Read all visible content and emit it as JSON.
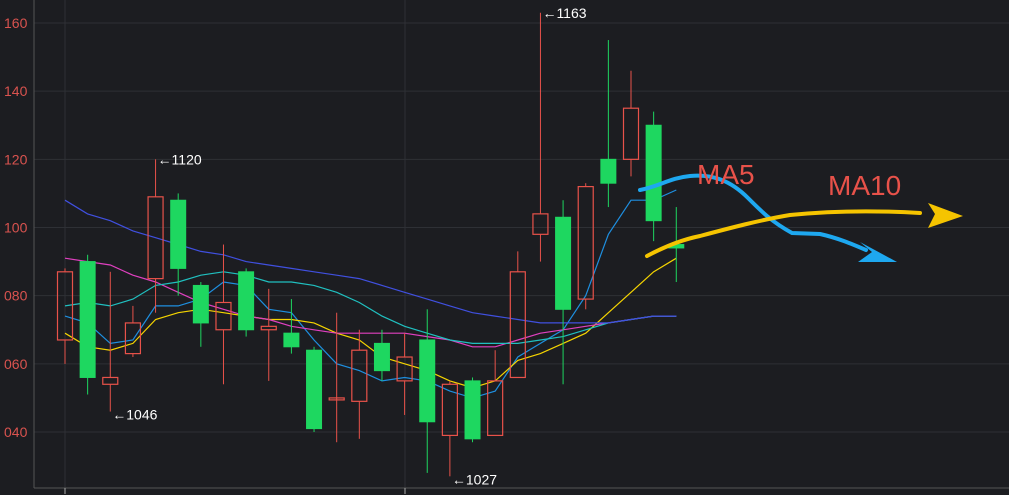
{
  "chart_data": {
    "type": "candlestick",
    "ylim": [
      25,
      165
    ],
    "y_ticks": [
      {
        "value": 160,
        "label": "160"
      },
      {
        "value": 140,
        "label": "140"
      },
      {
        "value": 120,
        "label": "120"
      },
      {
        "value": 100,
        "label": "100"
      },
      {
        "value": 80,
        "label": "080"
      },
      {
        "value": 60,
        "label": "060"
      },
      {
        "value": 40,
        "label": "040"
      }
    ],
    "grid": true,
    "colors": {
      "up": "#e8524a",
      "down": "#1ed760",
      "grid": "#2e3035",
      "axis": "#555555",
      "ma_blue_arrow": "#1ea8f0",
      "ma_yellow_arrow": "#f5c400",
      "ma_lines": [
        "#1e8fe0",
        "#f5d400",
        "#e040c0",
        "#20c0c0",
        "#4050e0"
      ]
    },
    "candles": [
      {
        "o": 67,
        "h": 88,
        "l": 60,
        "c": 87
      },
      {
        "o": 90,
        "h": 92,
        "l": 51,
        "c": 56
      },
      {
        "o": 54,
        "h": 87,
        "l": 46,
        "c": 56
      },
      {
        "o": 63,
        "h": 77,
        "l": 62,
        "c": 72
      },
      {
        "o": 85,
        "h": 120,
        "l": 75,
        "c": 109
      },
      {
        "o": 108,
        "h": 110,
        "l": 80,
        "c": 88
      },
      {
        "o": 83,
        "h": 84,
        "l": 65,
        "c": 72
      },
      {
        "o": 70,
        "h": 95,
        "l": 54,
        "c": 78
      },
      {
        "o": 87,
        "h": 88,
        "l": 68,
        "c": 70
      },
      {
        "o": 70,
        "h": 82,
        "l": 55,
        "c": 71
      },
      {
        "o": 69,
        "h": 79,
        "l": 63,
        "c": 65
      },
      {
        "o": 64,
        "h": 65,
        "l": 40,
        "c": 41
      },
      {
        "o": 50,
        "h": 75,
        "l": 37,
        "c": 50
      },
      {
        "o": 49,
        "h": 70,
        "l": 38,
        "c": 64
      },
      {
        "o": 66,
        "h": 70,
        "l": 55,
        "c": 58
      },
      {
        "o": 55,
        "h": 69,
        "l": 45,
        "c": 62
      },
      {
        "o": 67,
        "h": 76,
        "l": 28,
        "c": 43
      },
      {
        "o": 39,
        "h": 55,
        "l": 27,
        "c": 54
      },
      {
        "o": 55,
        "h": 56,
        "l": 37,
        "c": 38
      },
      {
        "o": 39,
        "h": 64,
        "l": 39,
        "c": 55
      },
      {
        "o": 56,
        "h": 93,
        "l": 56,
        "c": 87
      },
      {
        "o": 98,
        "h": 163,
        "l": 90,
        "c": 104
      },
      {
        "o": 103,
        "h": 108,
        "l": 54,
        "c": 76
      },
      {
        "o": 79,
        "h": 113,
        "l": 76,
        "c": 112
      },
      {
        "o": 120,
        "h": 155,
        "l": 106,
        "c": 113
      },
      {
        "o": 120,
        "h": 146,
        "l": 115,
        "c": 135
      },
      {
        "o": 130,
        "h": 134,
        "l": 96,
        "c": 102
      },
      {
        "o": 95,
        "h": 106,
        "l": 84,
        "c": 94
      }
    ],
    "ma_lines": [
      {
        "color": "#1e8fe0",
        "values": [
          74,
          72,
          66,
          67,
          77,
          77,
          79,
          84,
          83,
          76,
          75,
          67,
          60,
          58,
          55,
          56,
          55,
          52,
          50,
          52,
          62,
          66,
          70,
          80,
          98,
          108,
          108,
          111
        ]
      },
      {
        "color": "#f5d400",
        "values": [
          69,
          65,
          64,
          66,
          73,
          75,
          76,
          75,
          74,
          73,
          73,
          72,
          69,
          67,
          62,
          60,
          58,
          55,
          53,
          55,
          61,
          63,
          66,
          69,
          75,
          81,
          87,
          91
        ]
      },
      {
        "color": "#e040c0",
        "values": [
          91,
          90,
          89,
          86,
          84,
          81,
          78,
          76,
          74,
          73,
          71,
          70,
          69,
          69,
          69,
          69,
          68,
          67,
          65,
          65,
          67,
          69,
          70,
          71,
          72,
          73,
          74,
          74
        ]
      },
      {
        "color": "#20c0c0",
        "values": [
          77,
          78,
          77,
          79,
          83,
          84,
          86,
          87,
          86,
          84,
          84,
          83,
          81,
          78,
          74,
          71,
          69,
          67,
          66,
          66,
          66,
          67,
          68,
          70,
          72,
          73,
          74,
          74
        ]
      },
      {
        "color": "#4050e0",
        "values": [
          108,
          104,
          102,
          99,
          97,
          95,
          93,
          92,
          90,
          89,
          88,
          87,
          86,
          85,
          83,
          81,
          79,
          77,
          75,
          74,
          73,
          72,
          72,
          72,
          72,
          73,
          74,
          74
        ]
      }
    ],
    "annotations": [
      {
        "label": "←1163",
        "value": 163
      },
      {
        "label": "←1120",
        "value": 120
      },
      {
        "label": "←1046",
        "value": 46
      },
      {
        "label": "←1027",
        "value": 27
      }
    ],
    "labels": {
      "ma5": "MA5",
      "ma10": "MA10"
    }
  }
}
